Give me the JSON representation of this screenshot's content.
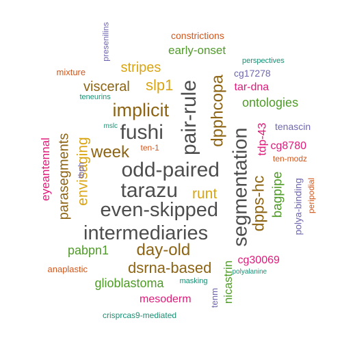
{
  "colors": {
    "gray": "#4d4d4d",
    "brown": "#8c6414",
    "gold": "#d9a514",
    "green": "#4f9a28",
    "magenta": "#e0197a",
    "purple": "#6e66b0",
    "orange": "#d1561b",
    "teal": "#1b8f73"
  },
  "words": [
    {
      "text": "odd-paired",
      "color": "gray"
    },
    {
      "text": "tarazu",
      "color": "gray"
    },
    {
      "text": "even-skipped",
      "color": "gray"
    },
    {
      "text": "intermediaries",
      "color": "gray"
    },
    {
      "text": "fushi",
      "color": "gray"
    },
    {
      "text": "pair-rule",
      "color": "gray"
    },
    {
      "text": "segmentation",
      "color": "gray"
    },
    {
      "text": "implicit",
      "color": "brown"
    },
    {
      "text": "week",
      "color": "brown"
    },
    {
      "text": "day-old",
      "color": "brown"
    },
    {
      "text": "dsrna-based",
      "color": "brown"
    },
    {
      "text": "dpphcopa",
      "color": "brown"
    },
    {
      "text": "dpps-hc",
      "color": "brown"
    },
    {
      "text": "visceral",
      "color": "brown"
    },
    {
      "text": "parasegments",
      "color": "brown"
    },
    {
      "text": "slp1",
      "color": "gold"
    },
    {
      "text": "stripes",
      "color": "gold"
    },
    {
      "text": "runt",
      "color": "gold"
    },
    {
      "text": "envisaging",
      "color": "gold"
    },
    {
      "text": "early-onset",
      "color": "green"
    },
    {
      "text": "ontologies",
      "color": "green"
    },
    {
      "text": "bagpipe",
      "color": "green"
    },
    {
      "text": "pabpn1",
      "color": "green"
    },
    {
      "text": "glioblastoma",
      "color": "green"
    },
    {
      "text": "nicastrin",
      "color": "green"
    },
    {
      "text": "tar-dna",
      "color": "magenta"
    },
    {
      "text": "tdp-43",
      "color": "magenta"
    },
    {
      "text": "cg8780",
      "color": "magenta"
    },
    {
      "text": "eyeantennal",
      "color": "magenta"
    },
    {
      "text": "cg30069",
      "color": "magenta"
    },
    {
      "text": "mesoderm",
      "color": "magenta"
    },
    {
      "text": "cg17278",
      "color": "purple"
    },
    {
      "text": "tenascin",
      "color": "purple"
    },
    {
      "text": "polya-binding",
      "color": "purple"
    },
    {
      "text": "presenilins",
      "color": "purple"
    },
    {
      "text": "tbph",
      "color": "purple"
    },
    {
      "text": "tenm",
      "color": "purple"
    },
    {
      "text": "constrictions",
      "color": "orange"
    },
    {
      "text": "mixture",
      "color": "orange"
    },
    {
      "text": "ten-1",
      "color": "orange"
    },
    {
      "text": "ten-modz",
      "color": "orange"
    },
    {
      "text": "peripodial",
      "color": "orange"
    },
    {
      "text": "anaplastic",
      "color": "orange"
    },
    {
      "text": "perspectives",
      "color": "teal"
    },
    {
      "text": "teneurins",
      "color": "teal"
    },
    {
      "text": "mslc",
      "color": "teal"
    },
    {
      "text": "masking",
      "color": "teal"
    },
    {
      "text": "polyalanine",
      "color": "teal"
    },
    {
      "text": "crisprcas9-mediated",
      "color": "teal"
    }
  ]
}
